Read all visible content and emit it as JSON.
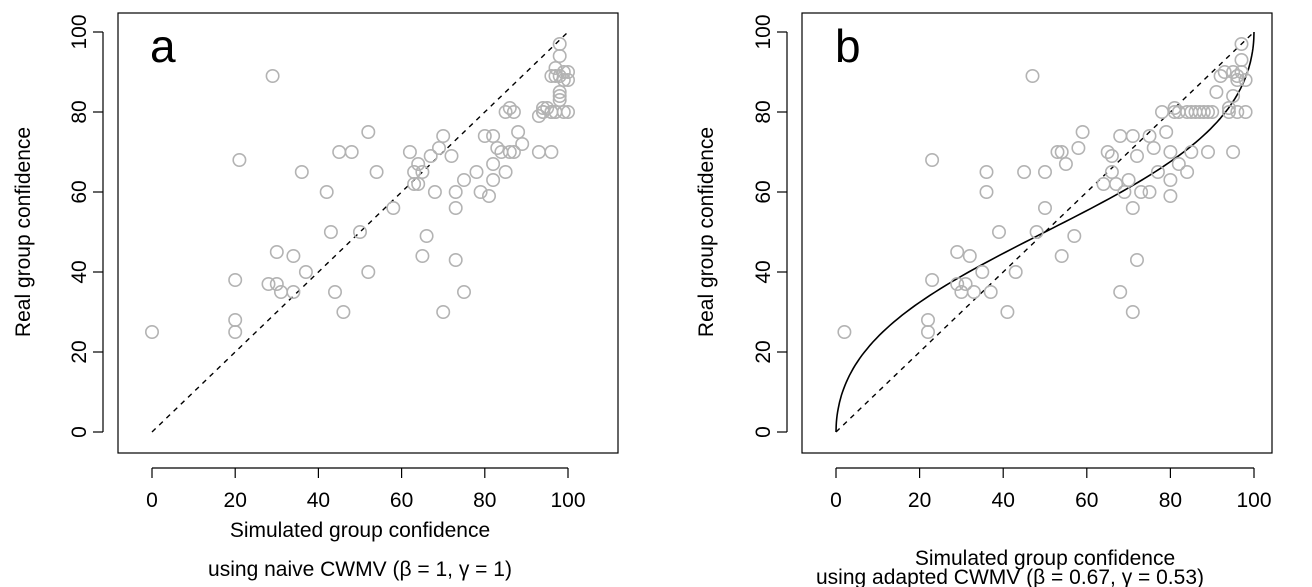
{
  "colors": {
    "point": "#b3b3b3",
    "line": "#000000"
  },
  "chart_data": [
    {
      "type": "scatter",
      "panel_label": "a",
      "xlabel": "Simulated group confidence",
      "xlabel_line2_prefix": "using naive CWMV (",
      "xlabel_line2_params": [
        {
          "symbol": "β",
          "value": "1"
        },
        {
          "symbol": "γ",
          "value": "1"
        }
      ],
      "xlabel_line2_suffix": ")",
      "ylabel": "Real group confidence",
      "xlim": [
        0,
        100
      ],
      "ylim": [
        0,
        100
      ],
      "xticks": [
        "0",
        "20",
        "40",
        "60",
        "80",
        "100"
      ],
      "yticks": [
        "0",
        "20",
        "40",
        "60",
        "80",
        "100"
      ],
      "reference_line": "identity (dashed)",
      "points": [
        [
          0,
          25
        ],
        [
          20,
          28
        ],
        [
          20,
          38
        ],
        [
          20,
          25
        ],
        [
          21,
          68
        ],
        [
          29,
          89
        ],
        [
          28,
          37
        ],
        [
          30,
          37
        ],
        [
          30,
          45
        ],
        [
          31,
          35
        ],
        [
          34,
          44
        ],
        [
          34,
          35
        ],
        [
          36,
          65
        ],
        [
          37,
          40
        ],
        [
          42,
          60
        ],
        [
          43,
          50
        ],
        [
          44,
          35
        ],
        [
          45,
          70
        ],
        [
          46,
          30
        ],
        [
          48,
          70
        ],
        [
          50,
          50
        ],
        [
          52,
          75
        ],
        [
          52,
          40
        ],
        [
          54,
          65
        ],
        [
          58,
          56
        ],
        [
          62,
          70
        ],
        [
          63,
          65
        ],
        [
          63,
          62
        ],
        [
          64,
          67
        ],
        [
          64,
          62
        ],
        [
          65,
          44
        ],
        [
          65,
          65
        ],
        [
          66,
          49
        ],
        [
          67,
          69
        ],
        [
          68,
          60
        ],
        [
          69,
          71
        ],
        [
          70,
          74
        ],
        [
          70,
          30
        ],
        [
          72,
          69
        ],
        [
          73,
          60
        ],
        [
          73,
          56
        ],
        [
          73,
          43
        ],
        [
          75,
          63
        ],
        [
          75,
          35
        ],
        [
          78,
          65
        ],
        [
          79,
          60
        ],
        [
          80,
          74
        ],
        [
          81,
          59
        ],
        [
          82,
          74
        ],
        [
          82,
          67
        ],
        [
          82,
          63
        ],
        [
          83,
          71
        ],
        [
          84,
          70
        ],
        [
          85,
          80
        ],
        [
          85,
          65
        ],
        [
          86,
          70
        ],
        [
          86,
          81
        ],
        [
          87,
          70
        ],
        [
          87,
          80
        ],
        [
          88,
          75
        ],
        [
          89,
          72
        ],
        [
          93,
          70
        ],
        [
          93,
          79
        ],
        [
          94,
          80
        ],
        [
          94,
          80
        ],
        [
          94,
          81
        ],
        [
          95,
          81
        ],
        [
          96,
          70
        ],
        [
          96,
          80
        ],
        [
          96,
          89
        ],
        [
          97,
          80
        ],
        [
          97,
          91
        ],
        [
          97,
          89
        ],
        [
          98,
          97
        ],
        [
          98,
          94
        ],
        [
          98,
          84
        ],
        [
          98,
          85
        ],
        [
          98,
          83
        ],
        [
          99,
          90
        ],
        [
          99,
          88
        ],
        [
          99,
          80
        ],
        [
          100,
          88
        ],
        [
          100,
          80
        ],
        [
          100,
          90
        ],
        [
          96,
          80
        ],
        [
          97,
          80
        ],
        [
          98,
          89
        ]
      ]
    },
    {
      "type": "scatter",
      "panel_label": "b",
      "xlabel": "Simulated group confidence",
      "xlabel_line2_prefix": "using adapted CWMV (",
      "xlabel_line2_params": [
        {
          "symbol": "β",
          "value": "0.67"
        },
        {
          "symbol": "γ",
          "value": "0.53"
        }
      ],
      "xlabel_line2_suffix": ")",
      "ylabel": "Real group confidence",
      "xlim": [
        0,
        100
      ],
      "ylim": [
        0,
        100
      ],
      "xticks": [
        "0",
        "20",
        "40",
        "60",
        "80",
        "100"
      ],
      "yticks": [
        "0",
        "20",
        "40",
        "60",
        "80",
        "100"
      ],
      "reference_line": "identity (dashed)",
      "fit_curve": "solid black S-shaped curve from (0,0) to (100,100)",
      "points": [
        [
          2,
          25
        ],
        [
          22,
          28
        ],
        [
          22,
          25
        ],
        [
          23,
          68
        ],
        [
          23,
          38
        ],
        [
          29,
          45
        ],
        [
          29,
          37
        ],
        [
          30,
          35
        ],
        [
          31,
          37
        ],
        [
          32,
          44
        ],
        [
          33,
          35
        ],
        [
          35,
          40
        ],
        [
          36,
          60
        ],
        [
          36,
          65
        ],
        [
          37,
          35
        ],
        [
          39,
          50
        ],
        [
          41,
          30
        ],
        [
          43,
          40
        ],
        [
          45,
          65
        ],
        [
          47,
          89
        ],
        [
          48,
          50
        ],
        [
          50,
          56
        ],
        [
          50,
          65
        ],
        [
          53,
          70
        ],
        [
          54,
          44
        ],
        [
          54,
          70
        ],
        [
          55,
          67
        ],
        [
          57,
          49
        ],
        [
          58,
          71
        ],
        [
          59,
          75
        ],
        [
          64,
          62
        ],
        [
          65,
          70
        ],
        [
          66,
          65
        ],
        [
          66,
          69
        ],
        [
          67,
          62
        ],
        [
          68,
          74
        ],
        [
          68,
          35
        ],
        [
          69,
          60
        ],
        [
          70,
          63
        ],
        [
          71,
          74
        ],
        [
          71,
          30
        ],
        [
          71,
          56
        ],
        [
          72,
          69
        ],
        [
          72,
          43
        ],
        [
          73,
          60
        ],
        [
          75,
          60
        ],
        [
          75,
          74
        ],
        [
          76,
          71
        ],
        [
          77,
          65
        ],
        [
          78,
          80
        ],
        [
          79,
          75
        ],
        [
          80,
          70
        ],
        [
          80,
          59
        ],
        [
          80,
          63
        ],
        [
          81,
          81
        ],
        [
          81,
          80
        ],
        [
          82,
          67
        ],
        [
          82,
          80
        ],
        [
          84,
          80
        ],
        [
          84,
          65
        ],
        [
          85,
          70
        ],
        [
          85,
          80
        ],
        [
          86,
          80
        ],
        [
          87,
          80
        ],
        [
          88,
          80
        ],
        [
          89,
          80
        ],
        [
          89,
          70
        ],
        [
          90,
          80
        ],
        [
          91,
          85
        ],
        [
          92,
          89
        ],
        [
          93,
          90
        ],
        [
          94,
          81
        ],
        [
          94,
          80
        ],
        [
          95,
          70
        ],
        [
          95,
          90
        ],
        [
          95,
          84
        ],
        [
          96,
          89
        ],
        [
          96,
          80
        ],
        [
          96,
          88
        ],
        [
          97,
          97
        ],
        [
          97,
          93
        ],
        [
          97,
          90
        ],
        [
          98,
          80
        ],
        [
          98,
          88
        ]
      ]
    }
  ]
}
